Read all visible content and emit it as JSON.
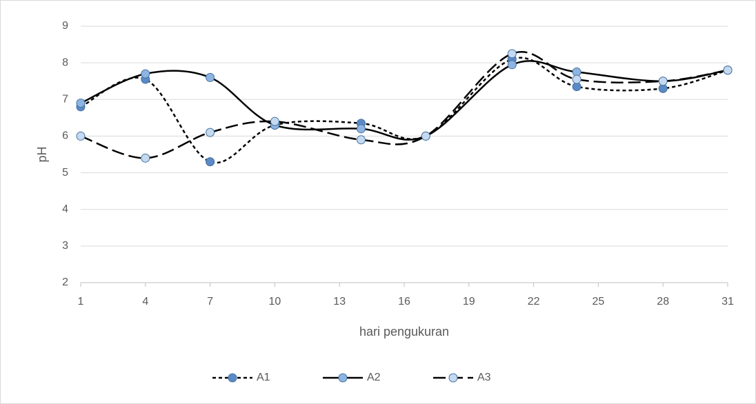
{
  "chart_data": {
    "type": "line",
    "x_label": "hari pengukuran",
    "y_label": "pH",
    "x": [
      1,
      4,
      7,
      10,
      14,
      17,
      21,
      24,
      28,
      31
    ],
    "series": [
      {
        "name": "A1",
        "color": "#5b8ac6",
        "dash": "dotted",
        "values": [
          6.8,
          7.55,
          5.3,
          6.3,
          6.35,
          6.0,
          8.1,
          7.35,
          7.3,
          7.8
        ]
      },
      {
        "name": "A2",
        "color": "#8eb4e3",
        "dash": "solid",
        "values": [
          6.9,
          7.7,
          7.6,
          6.3,
          6.2,
          6.0,
          7.95,
          7.75,
          7.5,
          7.8
        ]
      },
      {
        "name": "A3",
        "color": "#c5d9f1",
        "dash": "dashed",
        "values": [
          6.0,
          5.4,
          6.1,
          6.4,
          5.9,
          6.0,
          8.25,
          7.55,
          7.5,
          7.8
        ]
      }
    ],
    "xlim": [
      1,
      31
    ],
    "xticks": [
      1,
      4,
      7,
      10,
      13,
      16,
      19,
      22,
      25,
      28,
      31
    ],
    "ylim": [
      2,
      9
    ],
    "yticks": [
      2,
      3,
      4,
      5,
      6,
      7,
      8,
      9
    ],
    "grid": true,
    "smooth": true,
    "legend": "bottom"
  }
}
